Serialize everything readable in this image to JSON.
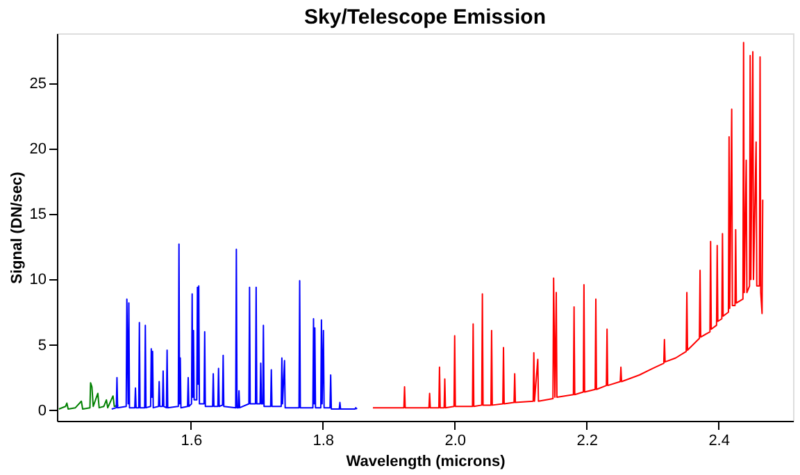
{
  "chart_data": {
    "type": "line",
    "title": "Sky/Telescope Emission",
    "xlabel": "Wavelength (microns)",
    "ylabel": "Signal (DN/sec)",
    "xlim": [
      1.397,
      2.513
    ],
    "ylim": [
      -0.8,
      28.8
    ],
    "xticks": [
      1.6,
      1.8,
      {
        "value": 2,
        "label": "2.0"
      },
      2.2,
      2.4
    ],
    "yticks": [
      0,
      5,
      10,
      15,
      20,
      25
    ],
    "grid": false,
    "legend": false,
    "line_style": "solid",
    "marker": "none",
    "series": [
      {
        "color": "#008000",
        "x": [
          1.4,
          1.41,
          1.412,
          1.414,
          1.425,
          1.434,
          1.436,
          1.447,
          1.448,
          1.45,
          1.452,
          1.459,
          1.461,
          1.468,
          1.472,
          1.474,
          1.482,
          1.484,
          1.49
        ],
        "values": [
          0.1,
          0.3,
          0.55,
          0.1,
          0.2,
          0.7,
          0.1,
          0.2,
          2.1,
          1.8,
          0.3,
          1.3,
          0.2,
          0.3,
          0.8,
          0.2,
          1.1,
          0.3,
          0.4
        ]
      },
      {
        "color": "#0000ff",
        "x": [
          1.48,
          1.487,
          1.488,
          1.489,
          1.502,
          1.503,
          1.505,
          1.506,
          1.507,
          1.515,
          1.516,
          1.517,
          1.521,
          1.522,
          1.523,
          1.53,
          1.531,
          1.532,
          1.539,
          1.54,
          1.541,
          1.542,
          1.543,
          1.551,
          1.552,
          1.553,
          1.557,
          1.558,
          1.559,
          1.563,
          1.564,
          1.565,
          1.581,
          1.582,
          1.583,
          1.584,
          1.585,
          1.595,
          1.596,
          1.597,
          1.601,
          1.602,
          1.603,
          1.604,
          1.605,
          1.609,
          1.61,
          1.611,
          1.612,
          1.613,
          1.62,
          1.621,
          1.622,
          1.633,
          1.634,
          1.635,
          1.641,
          1.642,
          1.643,
          1.648,
          1.649,
          1.65,
          1.668,
          1.669,
          1.67,
          1.672,
          1.673,
          1.674,
          1.688,
          1.689,
          1.69,
          1.698,
          1.699,
          1.7,
          1.705,
          1.706,
          1.707,
          1.709,
          1.71,
          1.711,
          1.721,
          1.722,
          1.723,
          1.737,
          1.738,
          1.739,
          1.742,
          1.743,
          1.764,
          1.765,
          1.766,
          1.785,
          1.786,
          1.787,
          1.788,
          1.789,
          1.797,
          1.798,
          1.799,
          1.801,
          1.802,
          1.811,
          1.812,
          1.813,
          1.825,
          1.826,
          1.827,
          1.849,
          1.85,
          1.852
        ],
        "values": [
          0.1,
          0.2,
          2.5,
          0.2,
          0.3,
          8.5,
          0.5,
          8.2,
          0.2,
          0.2,
          1.7,
          0.2,
          0.2,
          6.7,
          0.2,
          0.2,
          6.5,
          0.2,
          0.3,
          4.7,
          1.0,
          4.5,
          0.2,
          0.3,
          2.2,
          0.3,
          0.3,
          3.0,
          0.3,
          0.2,
          4.6,
          0.2,
          0.3,
          12.7,
          0.5,
          4.0,
          0.2,
          0.3,
          2.5,
          0.3,
          0.5,
          8.9,
          1.0,
          6.1,
          0.8,
          0.8,
          9.4,
          2.0,
          9.5,
          0.5,
          0.5,
          6.0,
          0.3,
          0.3,
          2.8,
          0.3,
          0.3,
          3.2,
          0.3,
          0.4,
          4.2,
          0.3,
          0.2,
          12.3,
          0.2,
          0.2,
          1.5,
          0.2,
          0.5,
          9.4,
          0.5,
          0.5,
          9.4,
          0.5,
          0.5,
          3.6,
          0.5,
          0.5,
          6.5,
          0.3,
          0.3,
          3.1,
          0.3,
          0.3,
          4.0,
          0.5,
          3.8,
          0.2,
          0.2,
          9.9,
          0.2,
          0.2,
          7.0,
          0.5,
          6.3,
          0.2,
          0.2,
          6.9,
          0.5,
          6.1,
          0.2,
          0.2,
          2.7,
          0.1,
          0.1,
          0.6,
          0.1,
          0.1,
          0.2,
          0.1
        ]
      },
      {
        "color": "#ff0000",
        "x": [
          1.876,
          1.923,
          1.924,
          1.925,
          1.961,
          1.962,
          1.963,
          1.976,
          1.977,
          1.978,
          1.984,
          1.985,
          1.986,
          1.999,
          2.0,
          2.001,
          2.027,
          2.028,
          2.029,
          2.041,
          2.042,
          2.043,
          2.055,
          2.056,
          2.057,
          2.073,
          2.074,
          2.075,
          2.09,
          2.091,
          2.092,
          2.119,
          2.12,
          2.121,
          2.126,
          2.127,
          2.149,
          2.15,
          2.152,
          2.154,
          2.155,
          2.18,
          2.181,
          2.182,
          2.195,
          2.196,
          2.197,
          2.213,
          2.214,
          2.215,
          2.23,
          2.231,
          2.232,
          2.251,
          2.252,
          2.253,
          2.28,
          2.3,
          2.317,
          2.318,
          2.319,
          2.335,
          2.351,
          2.352,
          2.353,
          2.371,
          2.372,
          2.373,
          2.387,
          2.388,
          2.389,
          2.397,
          2.398,
          2.399,
          2.405,
          2.406,
          2.407,
          2.415,
          2.416,
          2.417,
          2.42,
          2.421,
          2.425,
          2.426,
          2.427,
          2.437,
          2.438,
          2.439,
          2.442,
          2.443,
          2.447,
          2.448,
          2.449,
          2.452,
          2.453,
          2.457,
          2.458,
          2.462,
          2.463,
          2.464,
          2.466,
          2.467
        ],
        "values": [
          0.2,
          0.2,
          1.8,
          0.2,
          0.2,
          1.3,
          0.2,
          0.2,
          3.3,
          0.2,
          0.2,
          2.4,
          0.2,
          0.3,
          5.7,
          0.3,
          0.3,
          6.6,
          0.3,
          0.4,
          8.9,
          0.4,
          0.4,
          6.1,
          0.4,
          0.5,
          4.8,
          0.5,
          0.6,
          2.8,
          0.6,
          0.7,
          4.4,
          0.7,
          3.9,
          0.7,
          0.9,
          10.1,
          1.0,
          9.0,
          1.0,
          1.2,
          7.9,
          1.2,
          1.4,
          9.6,
          1.4,
          1.6,
          8.5,
          1.6,
          1.9,
          6.2,
          1.9,
          2.2,
          3.3,
          2.2,
          2.7,
          3.2,
          3.6,
          5.4,
          3.7,
          4.0,
          4.5,
          9.0,
          4.6,
          5.5,
          10.7,
          5.6,
          6.0,
          12.9,
          6.2,
          6.5,
          12.6,
          6.8,
          7.0,
          13.5,
          7.2,
          7.5,
          20.9,
          7.8,
          23.0,
          8.0,
          8.0,
          13.8,
          8.2,
          8.5,
          28.1,
          9.0,
          19.1,
          9.0,
          9.5,
          27.1,
          10.0,
          27.4,
          10.0,
          20.5,
          9.5,
          9.5,
          27.0,
          9.0,
          7.4,
          16.1
        ]
      }
    ]
  }
}
